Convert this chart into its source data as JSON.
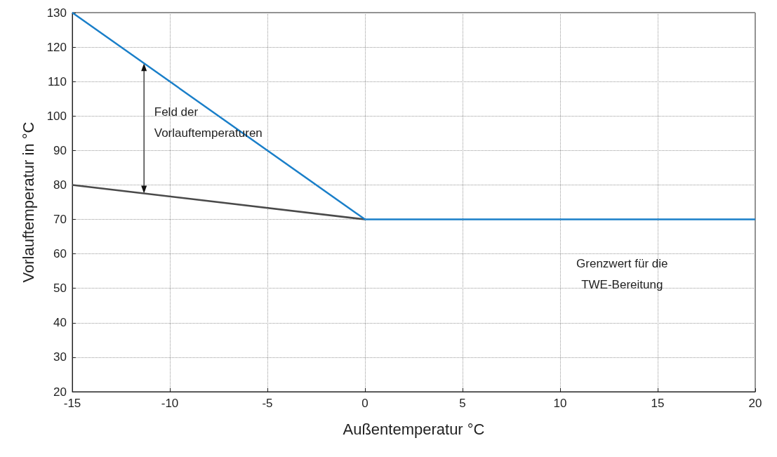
{
  "chart_data": {
    "type": "line",
    "xlabel": "Außentemperatur °C",
    "ylabel": "Vorlauftemperatur in °C",
    "series": [
      {
        "color": "#1a7fc9",
        "x": [
          -15,
          0,
          20
        ],
        "values": [
          130,
          70,
          70
        ]
      },
      {
        "color": "#4a4a4a",
        "x": [
          -15,
          0
        ],
        "values": [
          80,
          70
        ]
      }
    ],
    "xlim": [
      -15,
      20
    ],
    "xticks": [
      -15,
      -10,
      -5,
      0,
      5,
      10,
      15,
      20
    ],
    "ylim": [
      20,
      130
    ],
    "yticks": [
      20,
      30,
      40,
      50,
      60,
      70,
      80,
      90,
      100,
      110,
      120,
      130
    ],
    "grid": true,
    "marker": "none",
    "line_style": "solid",
    "annotations": [
      "Feld der\nVorlauftemperaturen",
      "Grenzwert für die\nTWE-Bereitung"
    ]
  }
}
